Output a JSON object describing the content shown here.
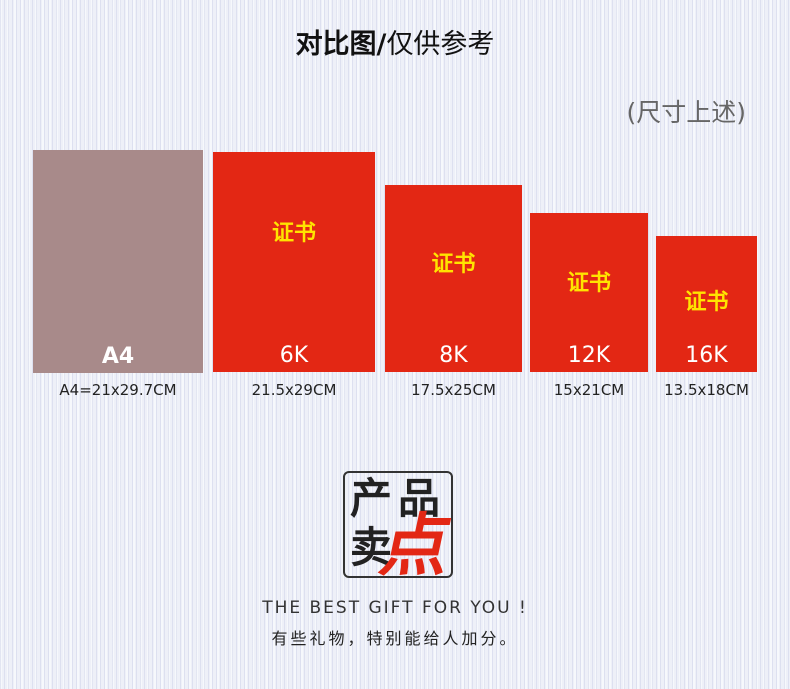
{
  "header": {
    "title_bold": "对比图/",
    "title_light": "仅供参考",
    "note": "(尺寸上述)"
  },
  "cards": [
    {
      "size_label": "A4",
      "cover_text": "",
      "dimensions": "A4=21x29.7CM",
      "color": "#a88a8a"
    },
    {
      "size_label": "6K",
      "cover_text": "证书",
      "dimensions": "21.5x29CM",
      "color": "#e32714"
    },
    {
      "size_label": "8K",
      "cover_text": "证书",
      "dimensions": "17.5x25CM",
      "color": "#e32714"
    },
    {
      "size_label": "12K",
      "cover_text": "证书",
      "dimensions": "15x21CM",
      "color": "#e32714"
    },
    {
      "size_label": "16K",
      "cover_text": "证书",
      "dimensions": "13.5x18CM",
      "color": "#e32714"
    }
  ],
  "logo": {
    "char1": "产",
    "char2": "品",
    "char3": "卖",
    "char4": "点"
  },
  "footer": {
    "slogan_en": "THE BEST GIFT FOR YOU !",
    "slogan_cn": "有些礼物，特别能给人加分。"
  }
}
